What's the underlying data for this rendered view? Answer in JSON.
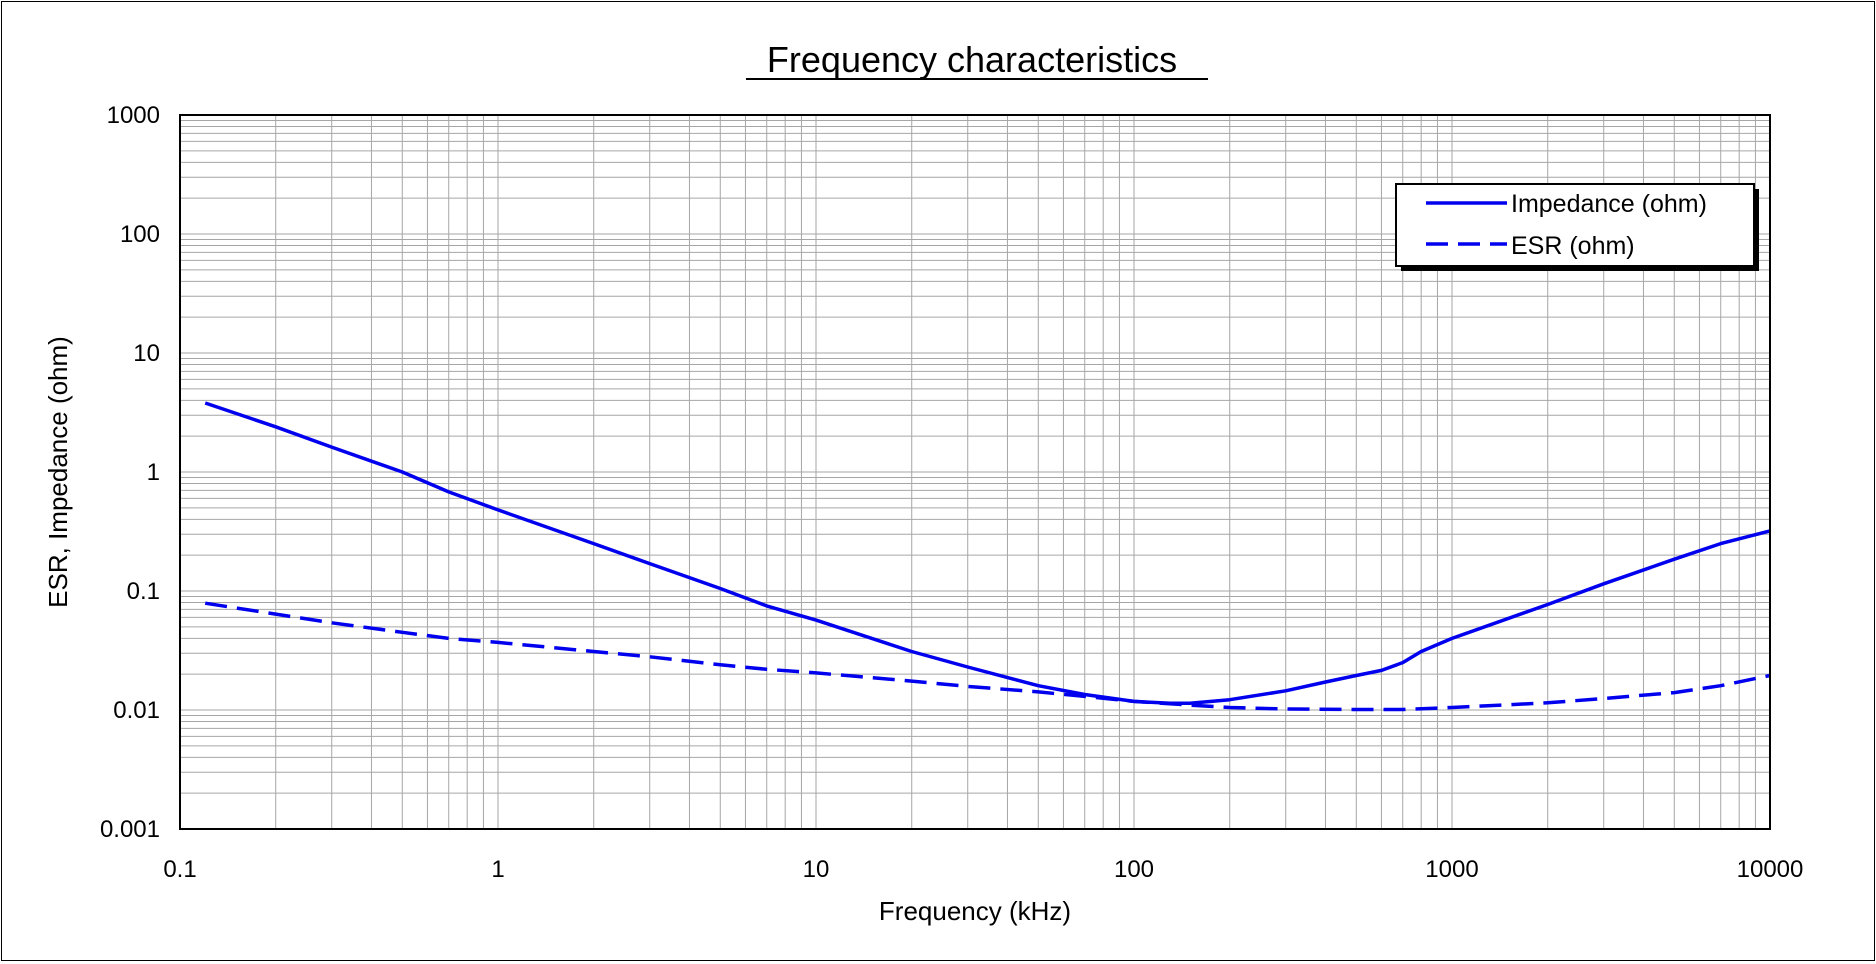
{
  "chart_data": {
    "type": "line",
    "title": "Frequency characteristics",
    "xlabel": "Frequency (kHz)",
    "ylabel": "ESR, Impedance (ohm)",
    "x_scale": "log",
    "y_scale": "log",
    "xlim": [
      0.1,
      10000
    ],
    "ylim": [
      0.001,
      1000
    ],
    "x_ticks": [
      "0.1",
      "1",
      "10",
      "100",
      "1000",
      "10000"
    ],
    "y_ticks": [
      "0.001",
      "0.01",
      "0.1",
      "1",
      "10",
      "100",
      "1000"
    ],
    "grid": true,
    "legend_position": "top-right",
    "series": [
      {
        "name": "Impedance (ohm)",
        "style": "solid",
        "color": "#0000ee",
        "points": [
          [
            0.12,
            3.8
          ],
          [
            0.2,
            2.4
          ],
          [
            0.3,
            1.62
          ],
          [
            0.5,
            1.0
          ],
          [
            0.7,
            0.68
          ],
          [
            1,
            0.48
          ],
          [
            2,
            0.25
          ],
          [
            3,
            0.17
          ],
          [
            5,
            0.105
          ],
          [
            7,
            0.075
          ],
          [
            10,
            0.057
          ],
          [
            20,
            0.031
          ],
          [
            30,
            0.023
          ],
          [
            50,
            0.016
          ],
          [
            70,
            0.0135
          ],
          [
            100,
            0.0118
          ],
          [
            130,
            0.0114
          ],
          [
            150,
            0.0114
          ],
          [
            200,
            0.0122
          ],
          [
            300,
            0.0145
          ],
          [
            400,
            0.0172
          ],
          [
            500,
            0.0195
          ],
          [
            600,
            0.0215
          ],
          [
            700,
            0.025
          ],
          [
            800,
            0.031
          ],
          [
            1000,
            0.04
          ],
          [
            2000,
            0.077
          ],
          [
            3000,
            0.115
          ],
          [
            5000,
            0.185
          ],
          [
            7000,
            0.25
          ],
          [
            10000,
            0.32
          ]
        ]
      },
      {
        "name": "ESR (ohm)",
        "style": "dashed",
        "color": "#0000ee",
        "points": [
          [
            0.12,
            0.079
          ],
          [
            0.2,
            0.064
          ],
          [
            0.3,
            0.054
          ],
          [
            0.5,
            0.045
          ],
          [
            0.7,
            0.04
          ],
          [
            1,
            0.037
          ],
          [
            2,
            0.031
          ],
          [
            3,
            0.028
          ],
          [
            5,
            0.024
          ],
          [
            7,
            0.022
          ],
          [
            10,
            0.0205
          ],
          [
            20,
            0.0175
          ],
          [
            30,
            0.0158
          ],
          [
            50,
            0.0142
          ],
          [
            70,
            0.013
          ],
          [
            100,
            0.0118
          ],
          [
            150,
            0.011
          ],
          [
            200,
            0.0105
          ],
          [
            300,
            0.0102
          ],
          [
            500,
            0.0101
          ],
          [
            700,
            0.0101
          ],
          [
            1000,
            0.0105
          ],
          [
            2000,
            0.0115
          ],
          [
            3000,
            0.0125
          ],
          [
            5000,
            0.014
          ],
          [
            7000,
            0.016
          ],
          [
            10000,
            0.0195
          ]
        ]
      }
    ]
  }
}
